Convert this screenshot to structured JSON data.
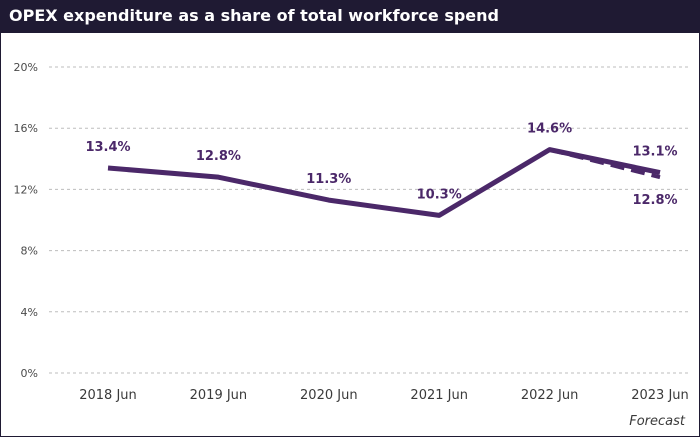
{
  "header": {
    "title": "OPEX expenditure as a share of total workforce spend"
  },
  "colors": {
    "line": "#4b2869",
    "title_bg": "#1f1a33",
    "grid": "#bdbdbd"
  },
  "chart_data": {
    "type": "line",
    "title": "OPEX expenditure as a share of total workforce spend",
    "categories": [
      "2018 Jun",
      "2019 Jun",
      "2020 Jun",
      "2021 Jun",
      "2022 Jun",
      "2023 Jun"
    ],
    "yticks": [
      "0%",
      "4%",
      "8%",
      "12%",
      "16%",
      "20%"
    ],
    "ylim": [
      0,
      20
    ],
    "grid": true,
    "series": [
      {
        "values": [
          13.4,
          12.8,
          11.3,
          10.3,
          14.6,
          13.1
        ],
        "labels": [
          "13.4%",
          "12.8%",
          "11.3%",
          "10.3%",
          "14.6%",
          "13.1%"
        ],
        "style": "solid"
      },
      {
        "values": [
          null,
          null,
          null,
          null,
          14.6,
          12.8
        ],
        "labels": [
          null,
          null,
          null,
          null,
          null,
          "12.8%"
        ],
        "style": "dashed"
      }
    ],
    "annotation": "Forecast"
  }
}
